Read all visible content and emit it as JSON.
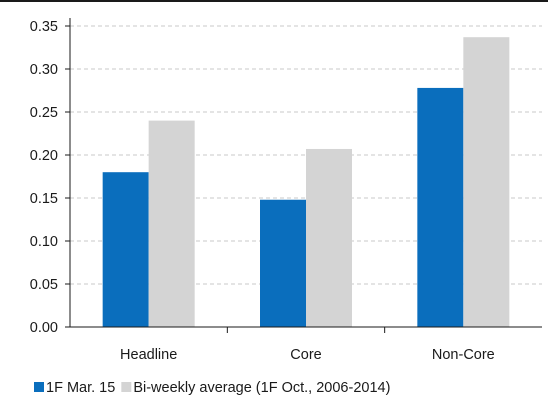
{
  "chart_data": {
    "type": "bar",
    "title": "",
    "xlabel": "",
    "ylabel": "",
    "categories": [
      "Headline",
      "Core",
      "Non-Core"
    ],
    "series": [
      {
        "name": "1F Mar. 15",
        "values": [
          0.18,
          0.148,
          0.278
        ],
        "color": "#0a6ebd"
      },
      {
        "name": "Bi-weekly average (1F Oct., 2006-2014)",
        "values": [
          0.24,
          0.207,
          0.337
        ],
        "color": "#d4d4d4"
      }
    ],
    "ylim": [
      0,
      0.35
    ],
    "yticks": [
      0.0,
      0.05,
      0.1,
      0.15,
      0.2,
      0.25,
      0.3,
      0.35
    ],
    "ytick_labels": [
      "0.00",
      "0.05",
      "0.10",
      "0.15",
      "0.20",
      "0.25",
      "0.30",
      "0.35"
    ],
    "grid": true,
    "grid_color": "#c8c8c8",
    "axis_color": "#1a1a1a",
    "legend_position": "bottom-left"
  }
}
